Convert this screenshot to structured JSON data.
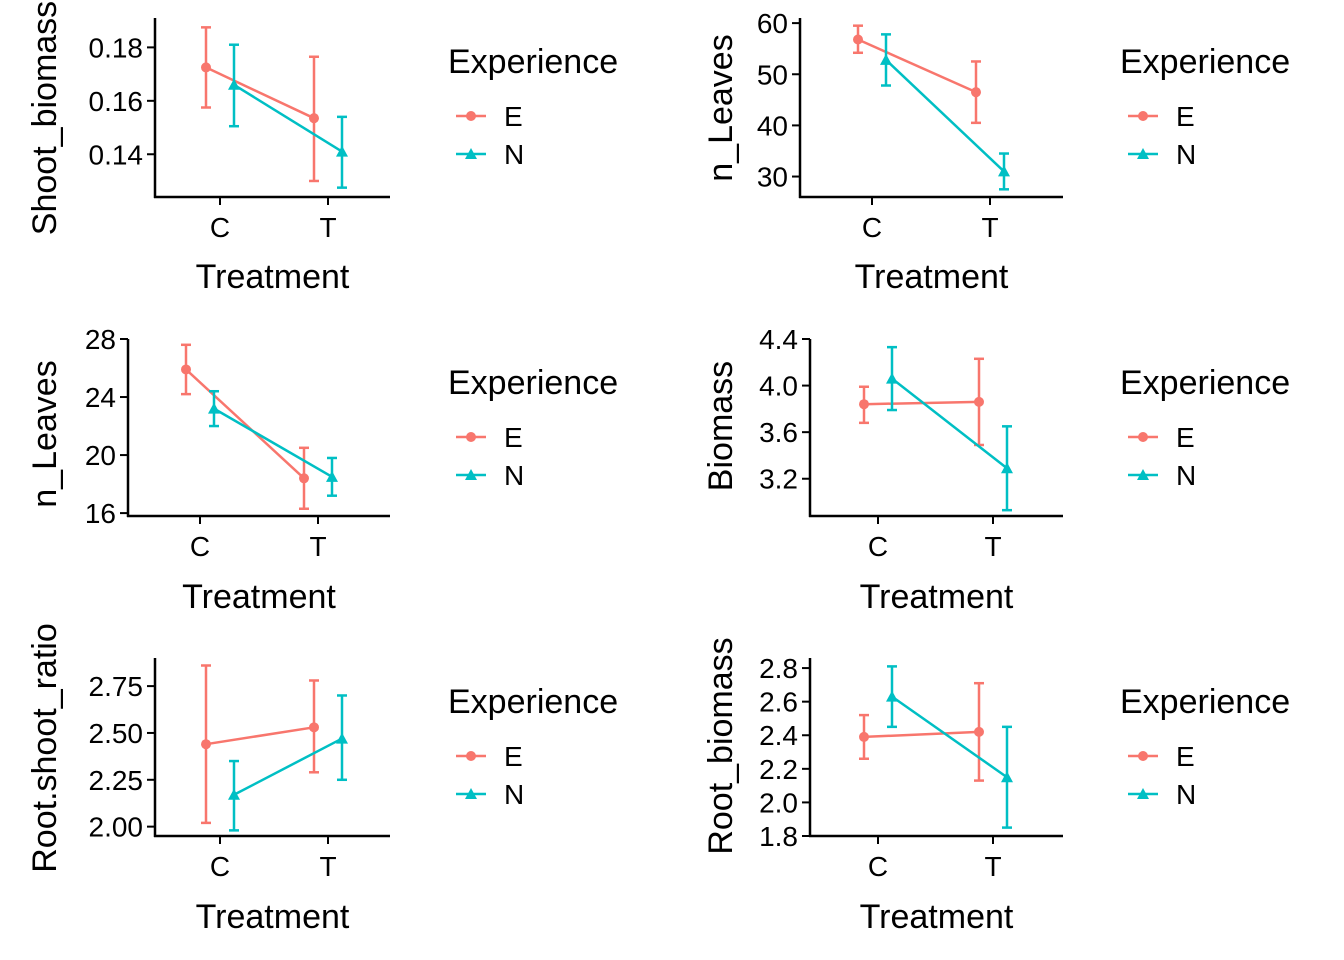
{
  "colors": {
    "E": "#F8766D",
    "N": "#00BFC4"
  },
  "legend": {
    "title": "Experience",
    "entries": [
      {
        "label": "E",
        "shape": "circle"
      },
      {
        "label": "N",
        "shape": "triangle"
      }
    ]
  },
  "chart_data": [
    {
      "type": "line",
      "title": "",
      "xlabel": "Treatment",
      "ylabel": "Shoot_biomass",
      "categories": [
        "C",
        "T"
      ],
      "ylim": [
        0.124,
        0.191
      ],
      "yticks": [
        0.14,
        0.16,
        0.18
      ],
      "ytick_labels": [
        "0.14",
        "0.16",
        "0.18"
      ],
      "series": [
        {
          "name": "E",
          "values": [
            0.1725,
            0.1535
          ],
          "lower": [
            0.1575,
            0.13
          ],
          "upper": [
            0.1875,
            0.1765
          ]
        },
        {
          "name": "N",
          "values": [
            0.166,
            0.141
          ],
          "lower": [
            0.1505,
            0.1275
          ],
          "upper": [
            0.181,
            0.154
          ]
        }
      ],
      "legend_position": "right"
    },
    {
      "type": "line",
      "title": "",
      "xlabel": "Treatment",
      "ylabel": "n_Leaves",
      "categories": [
        "C",
        "T"
      ],
      "ylim": [
        26,
        61
      ],
      "yticks": [
        30,
        40,
        50,
        60
      ],
      "ytick_labels": [
        "30",
        "40",
        "50",
        "60"
      ],
      "series": [
        {
          "name": "E",
          "values": [
            56.8,
            46.5
          ],
          "lower": [
            54.2,
            40.5
          ],
          "upper": [
            59.5,
            52.5
          ]
        },
        {
          "name": "N",
          "values": [
            52.8,
            31.0
          ],
          "lower": [
            47.8,
            27.5
          ],
          "upper": [
            57.8,
            34.5
          ]
        }
      ],
      "legend_position": "right"
    },
    {
      "type": "line",
      "title": "",
      "xlabel": "Treatment",
      "ylabel": "n_Leaves",
      "categories": [
        "C",
        "T"
      ],
      "ylim": [
        15.8,
        28.0
      ],
      "yticks": [
        16,
        20,
        24,
        28
      ],
      "ytick_labels": [
        "16",
        "20",
        "24",
        "28"
      ],
      "series": [
        {
          "name": "E",
          "values": [
            25.9,
            18.4
          ],
          "lower": [
            24.2,
            16.3
          ],
          "upper": [
            27.6,
            20.5
          ]
        },
        {
          "name": "N",
          "values": [
            23.2,
            18.5
          ],
          "lower": [
            22.0,
            17.2
          ],
          "upper": [
            24.4,
            19.8
          ]
        }
      ],
      "legend_position": "right"
    },
    {
      "type": "line",
      "title": "",
      "xlabel": "Treatment",
      "ylabel": "Biomass",
      "categories": [
        "C",
        "T"
      ],
      "ylim": [
        2.88,
        4.4
      ],
      "yticks": [
        3.2,
        3.6,
        4.0,
        4.4
      ],
      "ytick_labels": [
        "3.2",
        "3.6",
        "4.0",
        "4.4"
      ],
      "series": [
        {
          "name": "E",
          "values": [
            3.84,
            3.86
          ],
          "lower": [
            3.68,
            3.49
          ],
          "upper": [
            3.99,
            4.23
          ]
        },
        {
          "name": "N",
          "values": [
            4.06,
            3.29
          ],
          "lower": [
            3.79,
            2.93
          ],
          "upper": [
            4.33,
            3.65
          ]
        }
      ],
      "legend_position": "right"
    },
    {
      "type": "line",
      "title": "",
      "xlabel": "Treatment",
      "ylabel": "Root.shoot_ratio",
      "categories": [
        "C",
        "T"
      ],
      "ylim": [
        1.95,
        2.9
      ],
      "yticks": [
        2.0,
        2.25,
        2.5,
        2.75
      ],
      "ytick_labels": [
        "2.00",
        "2.25",
        "2.50",
        "2.75"
      ],
      "series": [
        {
          "name": "E",
          "values": [
            2.44,
            2.53
          ],
          "lower": [
            2.02,
            2.29
          ],
          "upper": [
            2.86,
            2.78
          ]
        },
        {
          "name": "N",
          "values": [
            2.17,
            2.47
          ],
          "lower": [
            1.98,
            2.25
          ],
          "upper": [
            2.35,
            2.7
          ]
        }
      ],
      "legend_position": "right"
    },
    {
      "type": "line",
      "title": "",
      "xlabel": "Treatment",
      "ylabel": "Root_biomass",
      "categories": [
        "C",
        "T"
      ],
      "ylim": [
        1.8,
        2.86
      ],
      "yticks": [
        1.8,
        2.0,
        2.2,
        2.4,
        2.6,
        2.8
      ],
      "ytick_labels": [
        "1.8",
        "2.0",
        "2.2",
        "2.4",
        "2.6",
        "2.8"
      ],
      "series": [
        {
          "name": "E",
          "values": [
            2.39,
            2.42
          ],
          "lower": [
            2.26,
            2.13
          ],
          "upper": [
            2.52,
            2.71
          ]
        },
        {
          "name": "N",
          "values": [
            2.63,
            2.15
          ],
          "lower": [
            2.45,
            1.85
          ],
          "upper": [
            2.81,
            2.45
          ]
        }
      ],
      "legend_position": "right"
    }
  ]
}
